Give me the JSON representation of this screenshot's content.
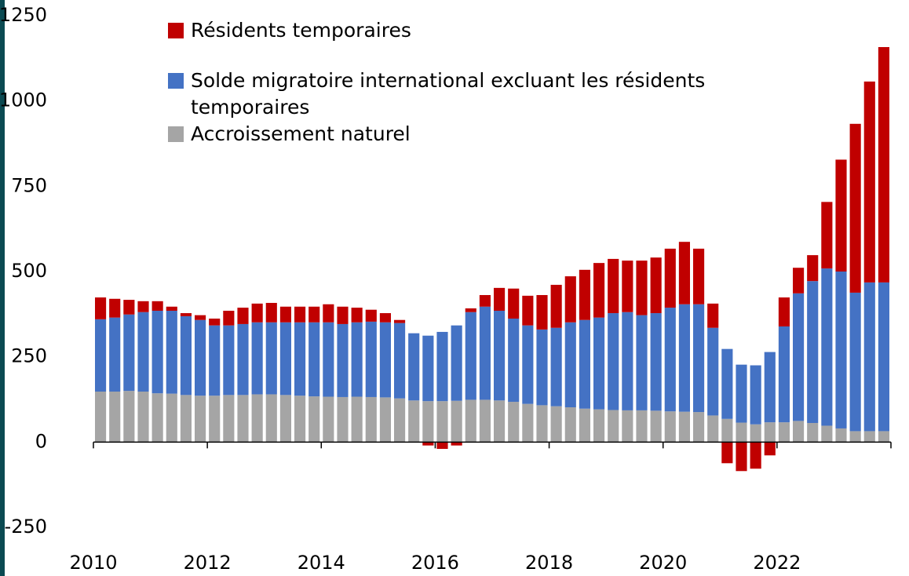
{
  "chart_data": {
    "type": "stacked_bar",
    "categories": [
      "2010",
      null,
      null,
      null,
      null,
      null,
      null,
      null,
      "2012",
      null,
      null,
      null,
      null,
      null,
      null,
      null,
      "2014",
      null,
      null,
      null,
      null,
      null,
      null,
      null,
      "2016",
      null,
      null,
      null,
      null,
      null,
      null,
      null,
      "2018",
      null,
      null,
      null,
      null,
      null,
      null,
      null,
      "2020",
      null,
      null,
      null,
      null,
      null,
      null,
      null,
      "2022",
      null,
      null,
      null,
      null,
      null,
      null,
      null
    ],
    "series": [
      {
        "name": "Résidents temporaires",
        "color": "#c00000",
        "values": [
          64,
          55,
          43,
          32,
          28,
          12,
          9,
          14,
          20,
          43,
          48,
          55,
          57,
          46,
          46,
          46,
          53,
          51,
          43,
          35,
          27,
          9,
          0,
          -10,
          -20,
          -10,
          11,
          34,
          67,
          88,
          87,
          101,
          126,
          135,
          147,
          160,
          159,
          151,
          160,
          163,
          173,
          183,
          163,
          71,
          -62,
          -85,
          -78,
          -39,
          85,
          75,
          76,
          195,
          328,
          495,
          589,
          690
        ]
      },
      {
        "name": "Solde migratoire international excluant les résidents temporaires",
        "color": "#4472c4",
        "values": [
          212,
          217,
          224,
          233,
          242,
          243,
          231,
          222,
          206,
          204,
          208,
          211,
          211,
          213,
          215,
          217,
          218,
          214,
          218,
          221,
          220,
          221,
          197,
          192,
          203,
          221,
          257,
          273,
          263,
          244,
          230,
          222,
          230,
          249,
          260,
          269,
          284,
          288,
          279,
          286,
          304,
          315,
          316,
          257,
          205,
          170,
          173,
          206,
          281,
          374,
          416,
          461,
          460,
          406,
          436,
          436
        ]
      },
      {
        "name": "Accroissement naturel",
        "color": "#a5a5a5",
        "values": [
          148,
          148,
          150,
          148,
          143,
          142,
          138,
          136,
          136,
          138,
          138,
          140,
          140,
          138,
          136,
          134,
          133,
          132,
          133,
          132,
          131,
          128,
          122,
          120,
          120,
          121,
          124,
          124,
          122,
          118,
          112,
          108,
          105,
          102,
          98,
          96,
          94,
          93,
          93,
          92,
          90,
          89,
          88,
          78,
          68,
          57,
          52,
          58,
          58,
          62,
          56,
          48,
          40,
          32,
          32,
          32
        ]
      }
    ],
    "ylim": [
      -250,
      1250
    ],
    "yticks": [
      -250,
      0,
      250,
      500,
      750,
      1000,
      1250
    ],
    "grid": false,
    "legend": "top-left"
  }
}
